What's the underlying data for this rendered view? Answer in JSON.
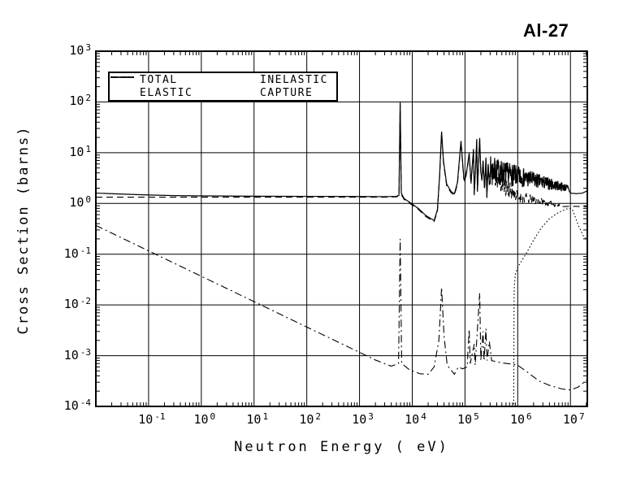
{
  "title": "Al-27",
  "legend": {
    "items": [
      {
        "label": "TOTAL",
        "style": "solid"
      },
      {
        "label": "ELASTIC",
        "style": "dashed"
      },
      {
        "label": "INELASTIC",
        "style": "dotted"
      },
      {
        "label": "CAPTURE",
        "style": "dashdot"
      }
    ]
  },
  "axes": {
    "x": {
      "label": "Neutron Energy ( eV)",
      "log_min": -2,
      "log_max": 7.32,
      "tick_exponents": [
        -1,
        0,
        1,
        2,
        3,
        4,
        5,
        6,
        7
      ]
    },
    "y": {
      "label": "Cross Section (barns)",
      "log_min": -4,
      "log_max": 3,
      "tick_exponents": [
        3,
        2,
        1,
        0,
        -1,
        -2,
        -3,
        -4
      ]
    }
  },
  "colors": {
    "foreground": "#000000",
    "background": "#ffffff"
  },
  "chart_data": {
    "type": "line",
    "title": "Al-27",
    "xlabel": "Neutron Energy ( eV)",
    "ylabel": "Cross Section (barns)",
    "xscale": "log",
    "yscale": "log",
    "xlim": [
      0.01,
      21000000
    ],
    "ylim": [
      0.0001,
      1000
    ],
    "grid": true,
    "legend_position": "top-left",
    "series": [
      {
        "name": "TOTAL",
        "style": "solid",
        "seed": 7,
        "points": [
          [
            0.01,
            1.6
          ],
          [
            0.03,
            1.53
          ],
          [
            0.1,
            1.47
          ],
          [
            0.3,
            1.43
          ],
          [
            1,
            1.41
          ],
          [
            10,
            1.39
          ],
          [
            100,
            1.38
          ],
          [
            1000,
            1.37
          ],
          [
            3000,
            1.36
          ],
          [
            5000,
            1.38
          ],
          [
            5600,
            1.45
          ],
          [
            5900,
            100
          ],
          [
            6200,
            1.6
          ],
          [
            7000,
            1.25
          ],
          [
            9000,
            1.05
          ],
          [
            13000,
            0.8
          ],
          [
            18000,
            0.58
          ],
          [
            26000,
            0.46
          ],
          [
            30000,
            0.75
          ],
          [
            33000,
            3.5
          ],
          [
            36000,
            26
          ],
          [
            39000,
            7
          ],
          [
            45000,
            2.4
          ],
          [
            55000,
            1.7
          ],
          [
            63000,
            1.55
          ],
          [
            72000,
            2.6
          ],
          [
            84000,
            17
          ],
          [
            95000,
            3.2
          ],
          [
            100000,
            2.9
          ],
          [
            110000,
            5
          ],
          [
            120000,
            9.8
          ],
          [
            130000,
            2.6
          ],
          [
            145000,
            11.8
          ],
          [
            150000,
            1.55
          ],
          [
            160000,
            6
          ],
          [
            167000,
            18.5
          ],
          [
            172000,
            1.8
          ],
          [
            183000,
            8
          ],
          [
            190000,
            19.5
          ],
          [
            200000,
            4
          ],
          [
            210000,
            3
          ],
          [
            220000,
            7
          ],
          [
            235000,
            2
          ],
          [
            250000,
            8
          ],
          [
            260000,
            1.35
          ],
          [
            275000,
            6
          ],
          [
            290000,
            2.5
          ],
          {
            "noise": {
              "fromE": 300000,
              "toE": 9000000,
              "fromV": 4.6,
              "toV": 2.0,
              "ampFrom": 0.28,
              "ampTo": 0.07,
              "steps": 330
            }
          },
          [
            9500000,
            1.75
          ],
          [
            10000000,
            1.6
          ],
          [
            13000000,
            1.56
          ],
          [
            17000000,
            1.6
          ],
          [
            21000000,
            1.78
          ]
        ]
      },
      {
        "name": "ELASTIC",
        "style": "dashed",
        "seed": 11,
        "points": [
          [
            0.01,
            1.33
          ],
          [
            0.1,
            1.33
          ],
          [
            1,
            1.33
          ],
          [
            10,
            1.33
          ],
          [
            100,
            1.33
          ],
          [
            1000,
            1.33
          ],
          [
            3000,
            1.33
          ],
          [
            5000,
            1.35
          ],
          [
            5600,
            1.4
          ],
          [
            5900,
            90
          ],
          [
            6200,
            1.5
          ],
          [
            7000,
            1.2
          ],
          [
            9000,
            1.0
          ],
          [
            13000,
            0.77
          ],
          [
            18000,
            0.55
          ],
          [
            26000,
            0.44
          ],
          [
            30000,
            0.7
          ],
          [
            33000,
            3.2
          ],
          [
            36000,
            25
          ],
          [
            39000,
            6.5
          ],
          [
            45000,
            2.2
          ],
          [
            55000,
            1.6
          ],
          [
            63000,
            1.45
          ],
          [
            72000,
            2.4
          ],
          [
            84000,
            16
          ],
          [
            95000,
            3.0
          ],
          [
            100000,
            2.7
          ],
          [
            110000,
            4.6
          ],
          [
            120000,
            9.2
          ],
          [
            130000,
            2.4
          ],
          [
            145000,
            11
          ],
          [
            150000,
            1.45
          ],
          [
            160000,
            5.6
          ],
          [
            167000,
            17.5
          ],
          [
            172000,
            1.7
          ],
          [
            183000,
            7.5
          ],
          [
            190000,
            18.5
          ],
          [
            200000,
            3.8
          ],
          [
            210000,
            2.8
          ],
          [
            220000,
            6.6
          ],
          [
            235000,
            1.9
          ],
          [
            250000,
            7.5
          ],
          [
            260000,
            1.28
          ],
          [
            275000,
            5.6
          ],
          [
            290000,
            2.3
          ],
          {
            "noise": {
              "fromE": 300000,
              "toE": 1000000,
              "fromV": 4.0,
              "toV": 1.35,
              "ampFrom": 0.25,
              "ampTo": 0.12,
              "steps": 80
            }
          },
          {
            "noise": {
              "fromE": 1000000,
              "toE": 6500000,
              "fromV": 1.35,
              "toV": 0.9,
              "ampFrom": 0.12,
              "ampTo": 0.03,
              "steps": 90
            }
          },
          [
            8000000,
            0.87
          ],
          [
            10000000,
            0.88
          ],
          [
            15000000,
            0.87
          ],
          [
            21000000,
            0.86
          ]
        ]
      },
      {
        "name": "INELASTIC",
        "style": "dotted",
        "seed": 3,
        "points": [
          [
            840000,
            0.00011
          ],
          [
            848000,
            0.004
          ],
          [
            856000,
            0.02
          ],
          [
            900000,
            0.04
          ],
          [
            1000000,
            0.055
          ],
          [
            1200000,
            0.075
          ],
          [
            1500000,
            0.11
          ],
          [
            2000000,
            0.19
          ],
          [
            2800000,
            0.33
          ],
          [
            4000000,
            0.5
          ],
          [
            5500000,
            0.63
          ],
          [
            7000000,
            0.72
          ],
          [
            8500000,
            0.78
          ],
          [
            10000000,
            0.8
          ],
          [
            11000000,
            0.74
          ],
          [
            12500000,
            0.52
          ],
          [
            14000000,
            0.38
          ],
          [
            16000000,
            0.28
          ],
          [
            18000000,
            0.22
          ],
          [
            21000000,
            0.19
          ]
        ]
      },
      {
        "name": "CAPTURE",
        "style": "dashdot",
        "seed": 5,
        "points": [
          [
            0.01,
            0.368
          ],
          [
            0.0253,
            0.231
          ],
          [
            0.1,
            0.116
          ],
          [
            0.3,
            0.067
          ],
          [
            1,
            0.0367
          ],
          [
            3,
            0.0212
          ],
          [
            10,
            0.0116
          ],
          [
            30,
            0.0067
          ],
          [
            100,
            0.00367
          ],
          [
            300,
            0.00212
          ],
          [
            1000,
            0.00116
          ],
          [
            2000,
            0.00082
          ],
          [
            4000,
            0.00062
          ],
          [
            5500,
            0.0007
          ],
          [
            5900,
            0.2
          ],
          [
            6300,
            0.0007
          ],
          [
            9000,
            0.00052
          ],
          [
            14000,
            0.00044
          ],
          [
            20000,
            0.00043
          ],
          [
            26000,
            0.0006
          ],
          [
            32000,
            0.002
          ],
          [
            36000,
            0.022
          ],
          [
            40000,
            0.0025
          ],
          [
            46000,
            0.00065
          ],
          [
            63000,
            0.00043
          ],
          [
            75000,
            0.0006
          ],
          [
            90000,
            0.00055
          ],
          [
            110000,
            0.0006
          ],
          [
            120000,
            0.0033
          ],
          [
            126000,
            0.0007
          ],
          [
            150000,
            0.0017
          ],
          [
            156000,
            0.00065
          ],
          [
            190000,
            0.017
          ],
          [
            200000,
            0.0008
          ],
          [
            220000,
            0.003
          ],
          [
            230000,
            0.0008
          ],
          [
            250000,
            0.0034
          ],
          [
            262000,
            0.0008
          ],
          [
            290000,
            0.0019
          ],
          [
            320000,
            0.0008
          ],
          [
            500000,
            0.00072
          ],
          [
            800000,
            0.00068
          ],
          [
            1000000,
            0.00065
          ],
          [
            1500000,
            0.00048
          ],
          [
            2500000,
            0.00032
          ],
          [
            4000000,
            0.00026
          ],
          [
            7000000,
            0.00022
          ],
          [
            10000000,
            0.00021
          ],
          [
            14000000,
            0.00024
          ],
          [
            21000000,
            0.00034
          ]
        ]
      }
    ]
  }
}
